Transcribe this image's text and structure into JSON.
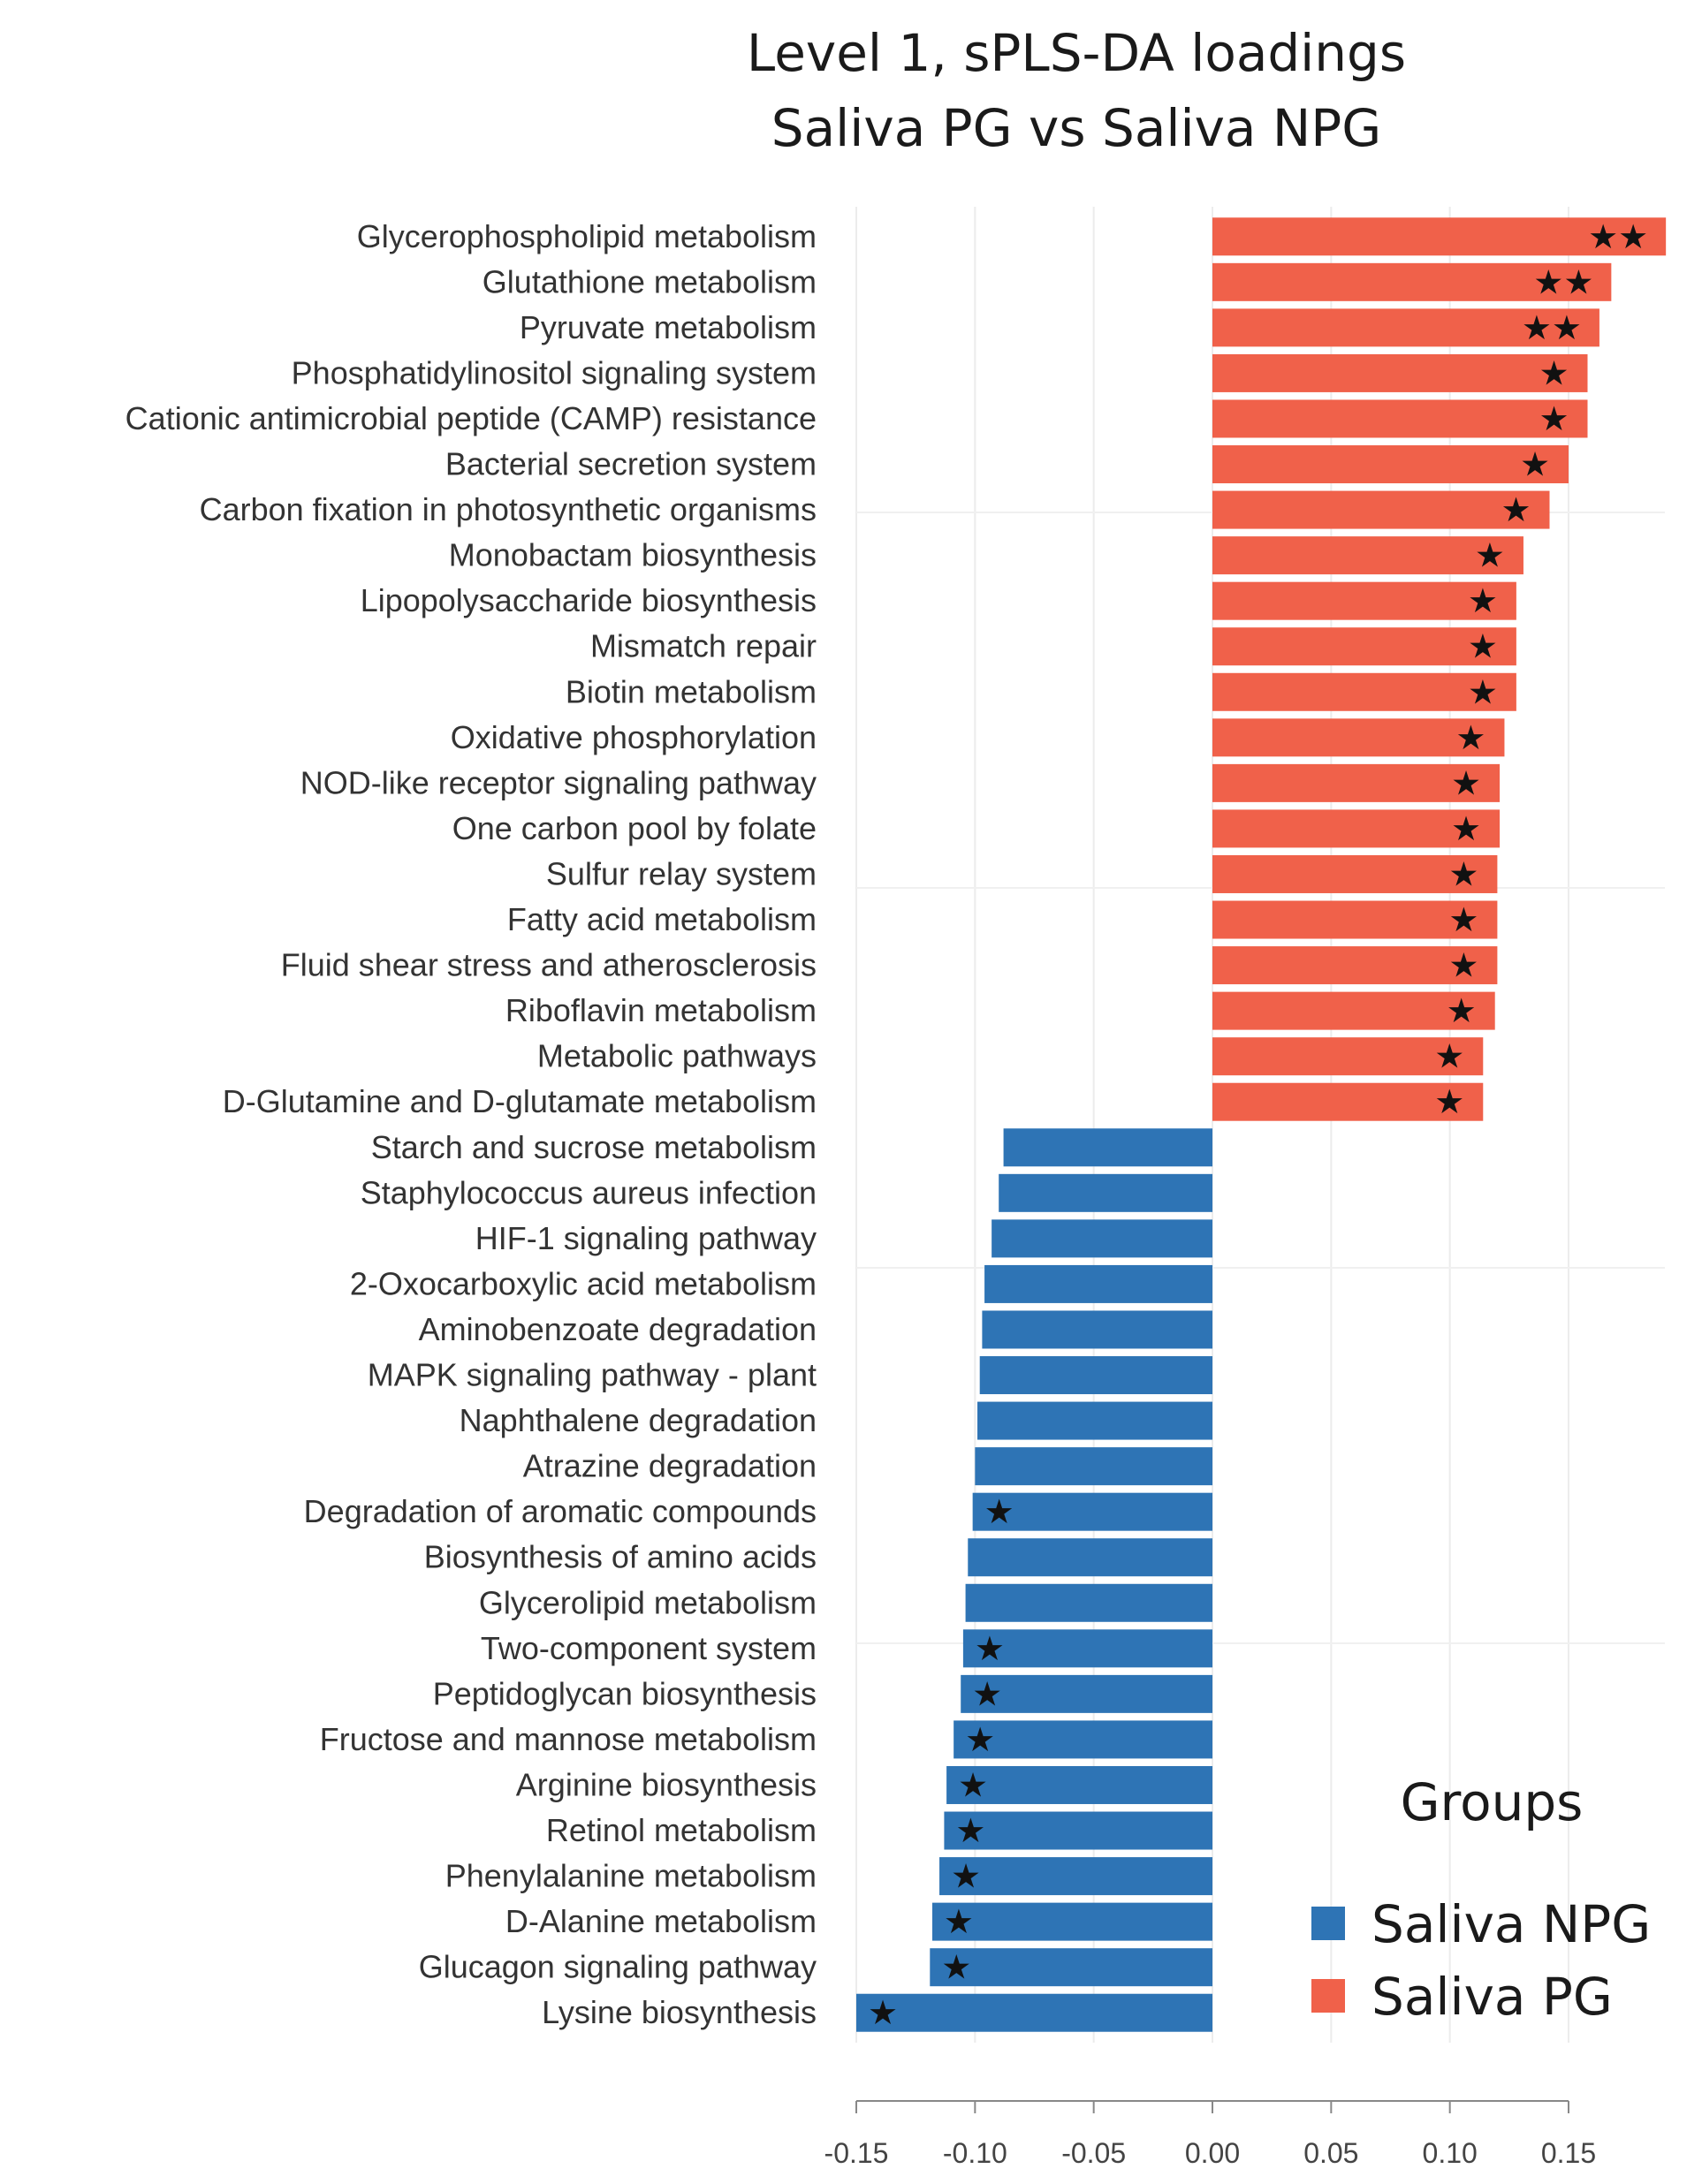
{
  "chart_data": {
    "type": "bar",
    "orientation": "horizontal",
    "title": [
      "Level 1, sPLS-DA loadings",
      "Saliva PG vs Saliva NPG"
    ],
    "xlim": [
      -0.15,
      0.19
    ],
    "xticks": [
      "-0.15",
      "-0.10",
      "-0.05",
      "0.00",
      "0.05",
      "0.10",
      "0.15"
    ],
    "xtick_values": [
      -0.15,
      -0.1,
      -0.05,
      0.0,
      0.05,
      0.1,
      0.15
    ],
    "grid": true,
    "legend": {
      "title": "Groups",
      "placement": "bottom-right",
      "entries": [
        {
          "name": "Saliva NPG",
          "color": "#2e74b5"
        },
        {
          "name": "Saliva PG",
          "color": "#f0614a"
        }
      ]
    },
    "categories": [
      "Glycerophospholipid metabolism",
      "Glutathione metabolism",
      "Pyruvate metabolism",
      "Phosphatidylinositol signaling system",
      "Cationic antimicrobial peptide (CAMP) resistance",
      "Bacterial secretion system",
      "Carbon fixation in photosynthetic organisms",
      "Monobactam biosynthesis",
      "Lipopolysaccharide biosynthesis",
      "Mismatch repair",
      "Biotin metabolism",
      "Oxidative phosphorylation",
      "NOD-like receptor signaling pathway",
      "One carbon pool by folate",
      "Sulfur relay system",
      "Fatty acid metabolism",
      "Fluid shear stress and atherosclerosis",
      "Riboflavin metabolism",
      "Metabolic pathways",
      "D-Glutamine and D-glutamate metabolism",
      "Starch and sucrose metabolism",
      "Staphylococcus aureus infection",
      "HIF-1 signaling pathway",
      "2-Oxocarboxylic acid metabolism",
      "Aminobenzoate degradation",
      "MAPK signaling pathway - plant",
      "Naphthalene degradation",
      "Atrazine degradation",
      "Degradation of aromatic compounds",
      "Biosynthesis of amino acids",
      "Glycerolipid metabolism",
      "Two-component system",
      "Peptidoglycan biosynthesis",
      "Fructose and mannose metabolism",
      "Arginine biosynthesis",
      "Retinol metabolism",
      "Phenylalanine metabolism",
      "D-Alanine metabolism",
      "Glucagon signaling pathway",
      "Lysine biosynthesis"
    ],
    "values": [
      0.191,
      0.168,
      0.163,
      0.158,
      0.158,
      0.15,
      0.142,
      0.131,
      0.128,
      0.128,
      0.128,
      0.123,
      0.121,
      0.121,
      0.12,
      0.12,
      0.12,
      0.119,
      0.114,
      0.114,
      -0.088,
      -0.09,
      -0.093,
      -0.096,
      -0.097,
      -0.098,
      -0.099,
      -0.1,
      -0.101,
      -0.103,
      -0.104,
      -0.105,
      -0.106,
      -0.109,
      -0.112,
      -0.113,
      -0.115,
      -0.118,
      -0.119,
      -0.15
    ],
    "groups": [
      "Saliva PG",
      "Saliva PG",
      "Saliva PG",
      "Saliva PG",
      "Saliva PG",
      "Saliva PG",
      "Saliva PG",
      "Saliva PG",
      "Saliva PG",
      "Saliva PG",
      "Saliva PG",
      "Saliva PG",
      "Saliva PG",
      "Saliva PG",
      "Saliva PG",
      "Saliva PG",
      "Saliva PG",
      "Saliva PG",
      "Saliva PG",
      "Saliva PG",
      "Saliva NPG",
      "Saliva NPG",
      "Saliva NPG",
      "Saliva NPG",
      "Saliva NPG",
      "Saliva NPG",
      "Saliva NPG",
      "Saliva NPG",
      "Saliva NPG",
      "Saliva NPG",
      "Saliva NPG",
      "Saliva NPG",
      "Saliva NPG",
      "Saliva NPG",
      "Saliva NPG",
      "Saliva NPG",
      "Saliva NPG",
      "Saliva NPG",
      "Saliva NPG",
      "Saliva NPG"
    ],
    "stars": [
      "★★",
      "★★",
      "★★",
      "★",
      "★",
      "★",
      "★",
      "★",
      "★",
      "★",
      "★",
      "★",
      "★",
      "★",
      "★",
      "★",
      "★",
      "★",
      "★",
      "★",
      "",
      "",
      "",
      "",
      "",
      "",
      "",
      "",
      "★",
      "",
      "",
      "★",
      "★",
      "★",
      "★",
      "★",
      "★",
      "★",
      "★",
      "★"
    ]
  }
}
